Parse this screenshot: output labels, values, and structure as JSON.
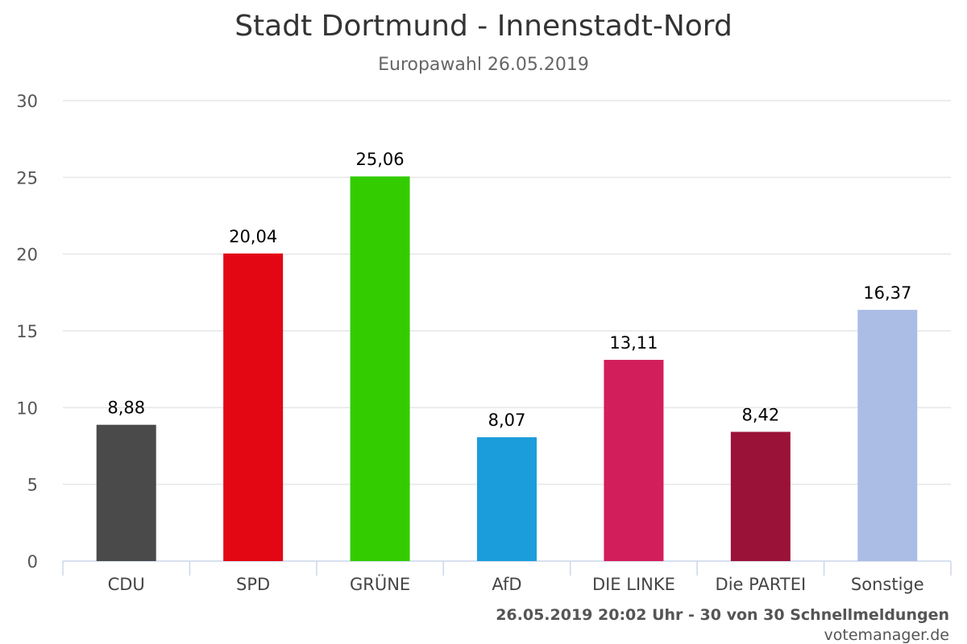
{
  "chart_data": {
    "type": "bar",
    "title": "Stadt Dortmund - Innenstadt-Nord",
    "subtitle": "Europawahl 26.05.2019",
    "categories": [
      "CDU",
      "SPD",
      "GRÜNE",
      "AfD",
      "DIE LINKE",
      "Die PARTEI",
      "Sonstige"
    ],
    "values": [
      8.88,
      20.04,
      25.06,
      8.07,
      13.11,
      8.42,
      16.37
    ],
    "value_labels": [
      "8,88",
      "20,04",
      "25,06",
      "8,07",
      "13,11",
      "8,42",
      "16,37"
    ],
    "colors": [
      "#4a4a4a",
      "#e30613",
      "#33cc00",
      "#1b9ddb",
      "#d21e5a",
      "#9a1238",
      "#abbde4"
    ],
    "ylim": [
      0,
      30
    ],
    "yticks": [
      0,
      5,
      10,
      15,
      20,
      25,
      30
    ],
    "grid": true,
    "legend": "none"
  },
  "footer": {
    "status": "26.05.2019 20:02 Uhr - 30 von 30 Schnellmeldungen",
    "source": "votemanager.de"
  }
}
